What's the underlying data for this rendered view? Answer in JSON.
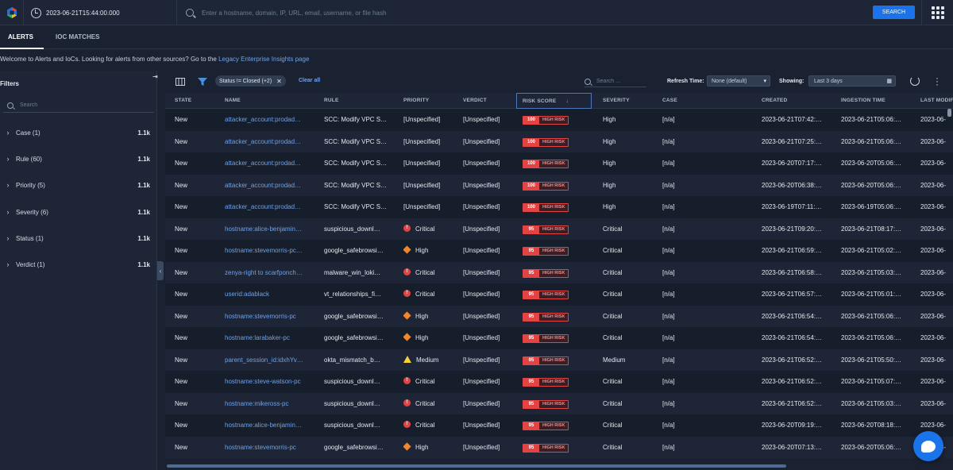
{
  "topbar": {
    "datetime": "2023-06-21T15:44:00.000",
    "search_placeholder": "Enter a hostname, domain, IP, URL, email, username, or file hash",
    "search_button": "SEARCH"
  },
  "tabs": [
    {
      "label": "ALERTS",
      "active": true
    },
    {
      "label": "IOC MATCHES",
      "active": false
    }
  ],
  "welcome": {
    "text": "Welcome to Alerts and IoCs. Looking for alerts from other sources? Go to the ",
    "link": "Legacy Enterprise Insights page"
  },
  "filters": {
    "title": "Filters",
    "search_placeholder": "Search",
    "facets": [
      {
        "label": "Case (1)",
        "count": "1.1k"
      },
      {
        "label": "Rule (60)",
        "count": "1.1k"
      },
      {
        "label": "Priority (5)",
        "count": "1.1k"
      },
      {
        "label": "Severity (6)",
        "count": "1.1k"
      },
      {
        "label": "Status (1)",
        "count": "1.1k"
      },
      {
        "label": "Verdict (1)",
        "count": "1.1k"
      }
    ]
  },
  "toolbar": {
    "filter_chip": "Status != Closed (+2)",
    "clear_all": "Clear all",
    "search_placeholder": "Search ...",
    "refresh_label": "Refresh Time:",
    "refresh_value": "None (default)",
    "showing_label": "Showing:",
    "showing_value": "Last 3 days"
  },
  "table": {
    "columns": [
      "STATE",
      "NAME",
      "RULE",
      "PRIORITY",
      "VERDICT",
      "RISK SCORE",
      "SEVERITY",
      "CASE",
      "CREATED",
      "INGESTION TIME",
      "LAST MODIFI"
    ],
    "risk_label": "HIGH RISK",
    "rows": [
      {
        "state": "New",
        "name": "attacker_account:prodad…",
        "rule": "SCC: Modify VPC S…",
        "priority": "[Unspecified]",
        "priority_icon": "",
        "verdict": "[Unspecified]",
        "score": "100",
        "severity": "High",
        "case": "[n/a]",
        "created": "2023-06-21T07:42:…",
        "ingestion": "2023-06-21T05:06:…",
        "modified": "2023-06-"
      },
      {
        "state": "New",
        "name": "attacker_account:prodad…",
        "rule": "SCC: Modify VPC S…",
        "priority": "[Unspecified]",
        "priority_icon": "",
        "verdict": "[Unspecified]",
        "score": "100",
        "severity": "High",
        "case": "[n/a]",
        "created": "2023-06-21T07:25:…",
        "ingestion": "2023-06-21T05:06:…",
        "modified": "2023-06-"
      },
      {
        "state": "New",
        "name": "attacker_account:prodad…",
        "rule": "SCC: Modify VPC S…",
        "priority": "[Unspecified]",
        "priority_icon": "",
        "verdict": "[Unspecified]",
        "score": "100",
        "severity": "High",
        "case": "[n/a]",
        "created": "2023-06-20T07:17:…",
        "ingestion": "2023-06-20T05:06:…",
        "modified": "2023-06-"
      },
      {
        "state": "New",
        "name": "attacker_account:prodad…",
        "rule": "SCC: Modify VPC S…",
        "priority": "[Unspecified]",
        "priority_icon": "",
        "verdict": "[Unspecified]",
        "score": "100",
        "severity": "High",
        "case": "[n/a]",
        "created": "2023-06-20T06:38:…",
        "ingestion": "2023-06-20T05:06:…",
        "modified": "2023-06-"
      },
      {
        "state": "New",
        "name": "attacker_account:prodad…",
        "rule": "SCC: Modify VPC S…",
        "priority": "[Unspecified]",
        "priority_icon": "",
        "verdict": "[Unspecified]",
        "score": "100",
        "severity": "High",
        "case": "[n/a]",
        "created": "2023-06-19T07:11:…",
        "ingestion": "2023-06-19T05:06:…",
        "modified": "2023-06-"
      },
      {
        "state": "New",
        "name": "hostname:alice-benjamin…",
        "rule": "suspicious_downl…",
        "priority": "Critical",
        "priority_icon": "crit",
        "verdict": "[Unspecified]",
        "score": "95",
        "severity": "Critical",
        "case": "[n/a]",
        "created": "2023-06-21T09:20:…",
        "ingestion": "2023-06-21T08:17:…",
        "modified": "2023-06-"
      },
      {
        "state": "New",
        "name": "hostname:stevemorris-pc…",
        "rule": "google_safebrowsi…",
        "priority": "High",
        "priority_icon": "high",
        "verdict": "[Unspecified]",
        "score": "95",
        "severity": "Critical",
        "case": "[n/a]",
        "created": "2023-06-21T06:59:…",
        "ingestion": "2023-06-21T05:02:…",
        "modified": "2023-06-"
      },
      {
        "state": "New",
        "name": "zenya-right to scarfponch…",
        "rule": "malware_win_loki…",
        "priority": "Critical",
        "priority_icon": "crit",
        "verdict": "[Unspecified]",
        "score": "95",
        "severity": "Critical",
        "case": "[n/a]",
        "created": "2023-06-21T06:58:…",
        "ingestion": "2023-06-21T05:03:…",
        "modified": "2023-06-"
      },
      {
        "state": "New",
        "name": "userid:adablack",
        "rule": "vt_relationships_fi…",
        "priority": "Critical",
        "priority_icon": "crit",
        "verdict": "[Unspecified]",
        "score": "95",
        "severity": "Critical",
        "case": "[n/a]",
        "created": "2023-06-21T06:57:…",
        "ingestion": "2023-06-21T05:01:…",
        "modified": "2023-06-"
      },
      {
        "state": "New",
        "name": "hostname:stevemorris-pc",
        "rule": "google_safebrowsi…",
        "priority": "High",
        "priority_icon": "high",
        "verdict": "[Unspecified]",
        "score": "95",
        "severity": "Critical",
        "case": "[n/a]",
        "created": "2023-06-21T06:54:…",
        "ingestion": "2023-06-21T05:06:…",
        "modified": "2023-06-"
      },
      {
        "state": "New",
        "name": "hostname:larabaker-pc",
        "rule": "google_safebrowsi…",
        "priority": "High",
        "priority_icon": "high",
        "verdict": "[Unspecified]",
        "score": "95",
        "severity": "Critical",
        "case": "[n/a]",
        "created": "2023-06-21T06:54:…",
        "ingestion": "2023-06-21T05:06:…",
        "modified": "2023-06-"
      },
      {
        "state": "New",
        "name": "parent_session_id:idxhYv…",
        "rule": "okta_mismatch_b…",
        "priority": "Medium",
        "priority_icon": "med",
        "verdict": "[Unspecified]",
        "score": "95",
        "severity": "Medium",
        "case": "[n/a]",
        "created": "2023-06-21T06:52:…",
        "ingestion": "2023-06-21T05:50:…",
        "modified": "2023-06-"
      },
      {
        "state": "New",
        "name": "hostname:steve-watson-pc",
        "rule": "suspicious_downl…",
        "priority": "Critical",
        "priority_icon": "crit",
        "verdict": "[Unspecified]",
        "score": "95",
        "severity": "Critical",
        "case": "[n/a]",
        "created": "2023-06-21T06:52:…",
        "ingestion": "2023-06-21T05:07:…",
        "modified": "2023-06-"
      },
      {
        "state": "New",
        "name": "hostname:mikeross-pc",
        "rule": "suspicious_downl…",
        "priority": "Critical",
        "priority_icon": "crit",
        "verdict": "[Unspecified]",
        "score": "95",
        "severity": "Critical",
        "case": "[n/a]",
        "created": "2023-06-21T06:52:…",
        "ingestion": "2023-06-21T05:03:…",
        "modified": "2023-06-"
      },
      {
        "state": "New",
        "name": "hostname:alice-benjamin…",
        "rule": "suspicious_downl…",
        "priority": "Critical",
        "priority_icon": "crit",
        "verdict": "[Unspecified]",
        "score": "95",
        "severity": "Critical",
        "case": "[n/a]",
        "created": "2023-06-20T09:19:…",
        "ingestion": "2023-06-20T08:18:…",
        "modified": "2023-06-"
      },
      {
        "state": "New",
        "name": "hostname:stevemorris-pc",
        "rule": "google_safebrowsi…",
        "priority": "High",
        "priority_icon": "high",
        "verdict": "[Unspecified]",
        "score": "95",
        "severity": "Critical",
        "case": "[n/a]",
        "created": "2023-06-20T07:13:…",
        "ingestion": "2023-06-20T05:06:…",
        "modified": "2023-06-"
      }
    ]
  },
  "colors": {
    "accent": "#1a73e8",
    "link": "#6ea2e8",
    "critical": "#e24444",
    "high": "#f2862c",
    "medium": "#f5d13a"
  }
}
